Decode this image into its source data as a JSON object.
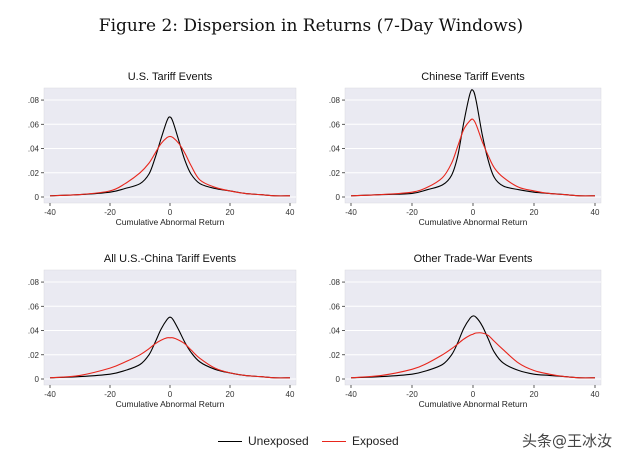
{
  "figure_title": "Figure 2: Dispersion in Returns (7-Day Windows)",
  "legend": [
    {
      "label": "Unexposed",
      "color": "#000000"
    },
    {
      "label": "Exposed",
      "color": "#e8261c"
    }
  ],
  "watermark": "头条@王冰汝",
  "chart_data": [
    {
      "type": "line",
      "title": "U.S. Tariff Events",
      "xlabel": "Cumulative Abnormal Return",
      "ylabel": "",
      "xlim": [
        -40,
        40
      ],
      "ylim": [
        0,
        0.085
      ],
      "xticks": [
        "-40",
        "-20",
        "0",
        "20",
        "40"
      ],
      "yticks": [
        "0",
        ".02",
        ".04",
        ".06",
        ".08"
      ],
      "grid": true,
      "series": [
        {
          "name": "Unexposed",
          "color": "#000000",
          "x": [
            -40,
            -30,
            -20,
            -15,
            -10,
            -7,
            -5,
            -3,
            -1,
            0,
            1,
            3,
            5,
            7,
            10,
            15,
            20,
            25,
            30,
            35,
            40
          ],
          "y": [
            0.001,
            0.002,
            0.004,
            0.007,
            0.011,
            0.019,
            0.032,
            0.048,
            0.063,
            0.066,
            0.062,
            0.046,
            0.03,
            0.019,
            0.011,
            0.007,
            0.005,
            0.003,
            0.002,
            0.001,
            0.001
          ]
        },
        {
          "name": "Exposed",
          "color": "#e8261c",
          "x": [
            -40,
            -30,
            -20,
            -15,
            -10,
            -7,
            -5,
            -3,
            -1,
            0,
            1,
            3,
            5,
            7,
            10,
            15,
            20,
            25,
            30,
            35,
            40
          ],
          "y": [
            0.001,
            0.002,
            0.005,
            0.011,
            0.02,
            0.028,
            0.036,
            0.044,
            0.049,
            0.05,
            0.049,
            0.044,
            0.036,
            0.026,
            0.014,
            0.008,
            0.005,
            0.003,
            0.002,
            0.001,
            0.001
          ]
        }
      ]
    },
    {
      "type": "line",
      "title": "Chinese Tariff Events",
      "xlabel": "Cumulative Abnormal Return",
      "ylabel": "",
      "xlim": [
        -40,
        40
      ],
      "ylim": [
        0,
        0.085
      ],
      "xticks": [
        "-40",
        "-20",
        "0",
        "20",
        "40"
      ],
      "yticks": [
        "0",
        ".02",
        ".04",
        ".06",
        ".08"
      ],
      "grid": true,
      "series": [
        {
          "name": "Unexposed",
          "color": "#000000",
          "x": [
            -40,
            -30,
            -20,
            -15,
            -10,
            -7,
            -5,
            -3,
            -1,
            0,
            1,
            3,
            5,
            7,
            10,
            15,
            20,
            25,
            30,
            35,
            40
          ],
          "y": [
            0.001,
            0.002,
            0.003,
            0.006,
            0.01,
            0.018,
            0.034,
            0.062,
            0.085,
            0.088,
            0.08,
            0.052,
            0.03,
            0.016,
            0.009,
            0.006,
            0.004,
            0.003,
            0.002,
            0.001,
            0.001
          ]
        },
        {
          "name": "Exposed",
          "color": "#e8261c",
          "x": [
            -40,
            -30,
            -20,
            -15,
            -10,
            -7,
            -5,
            -3,
            -1,
            0,
            1,
            3,
            5,
            7,
            10,
            15,
            20,
            25,
            30,
            35,
            40
          ],
          "y": [
            0.001,
            0.002,
            0.004,
            0.008,
            0.016,
            0.028,
            0.042,
            0.056,
            0.063,
            0.064,
            0.06,
            0.046,
            0.034,
            0.024,
            0.016,
            0.008,
            0.005,
            0.003,
            0.002,
            0.001,
            0.001
          ]
        }
      ]
    },
    {
      "type": "line",
      "title": "All U.S.-China Tariff Events",
      "xlabel": "Cumulative Abnormal Return",
      "ylabel": "",
      "xlim": [
        -40,
        40
      ],
      "ylim": [
        0,
        0.085
      ],
      "xticks": [
        "-40",
        "-20",
        "0",
        "20",
        "40"
      ],
      "yticks": [
        "0",
        ".02",
        ".04",
        ".06",
        ".08"
      ],
      "grid": true,
      "series": [
        {
          "name": "Unexposed",
          "color": "#000000",
          "x": [
            -40,
            -30,
            -20,
            -15,
            -10,
            -7,
            -5,
            -3,
            -1,
            0,
            1,
            3,
            5,
            7,
            10,
            15,
            20,
            25,
            30,
            35,
            40
          ],
          "y": [
            0.001,
            0.002,
            0.004,
            0.007,
            0.012,
            0.02,
            0.03,
            0.041,
            0.049,
            0.051,
            0.049,
            0.04,
            0.03,
            0.022,
            0.014,
            0.008,
            0.005,
            0.003,
            0.002,
            0.001,
            0.001
          ]
        },
        {
          "name": "Exposed",
          "color": "#e8261c",
          "x": [
            -40,
            -30,
            -20,
            -15,
            -10,
            -7,
            -5,
            -3,
            -1,
            0,
            1,
            3,
            5,
            7,
            10,
            15,
            20,
            25,
            30,
            35,
            40
          ],
          "y": [
            0.001,
            0.003,
            0.009,
            0.014,
            0.02,
            0.025,
            0.029,
            0.032,
            0.034,
            0.034,
            0.034,
            0.032,
            0.029,
            0.024,
            0.017,
            0.009,
            0.005,
            0.003,
            0.002,
            0.001,
            0.001
          ]
        }
      ]
    },
    {
      "type": "line",
      "title": "Other Trade-War Events",
      "xlabel": "Cumulative Abnormal Return",
      "ylabel": "",
      "xlim": [
        -40,
        40
      ],
      "ylim": [
        0,
        0.085
      ],
      "xticks": [
        "-40",
        "-20",
        "0",
        "20",
        "40"
      ],
      "yticks": [
        "0",
        ".02",
        ".04",
        ".06",
        ".08"
      ],
      "grid": true,
      "series": [
        {
          "name": "Unexposed",
          "color": "#000000",
          "x": [
            -40,
            -30,
            -20,
            -15,
            -10,
            -7,
            -5,
            -3,
            -1,
            0,
            1,
            3,
            5,
            7,
            10,
            15,
            20,
            25,
            30,
            35,
            40
          ],
          "y": [
            0.001,
            0.002,
            0.004,
            0.007,
            0.012,
            0.02,
            0.03,
            0.042,
            0.05,
            0.052,
            0.051,
            0.044,
            0.033,
            0.022,
            0.013,
            0.007,
            0.004,
            0.003,
            0.002,
            0.001,
            0.001
          ]
        },
        {
          "name": "Exposed",
          "color": "#e8261c",
          "x": [
            -40,
            -30,
            -20,
            -15,
            -10,
            -7,
            -5,
            -3,
            -1,
            0,
            1,
            3,
            5,
            7,
            10,
            15,
            20,
            25,
            30,
            35,
            40
          ],
          "y": [
            0.001,
            0.003,
            0.008,
            0.013,
            0.02,
            0.025,
            0.029,
            0.033,
            0.036,
            0.037,
            0.038,
            0.038,
            0.036,
            0.031,
            0.024,
            0.013,
            0.007,
            0.004,
            0.002,
            0.001,
            0.001
          ]
        }
      ]
    }
  ]
}
